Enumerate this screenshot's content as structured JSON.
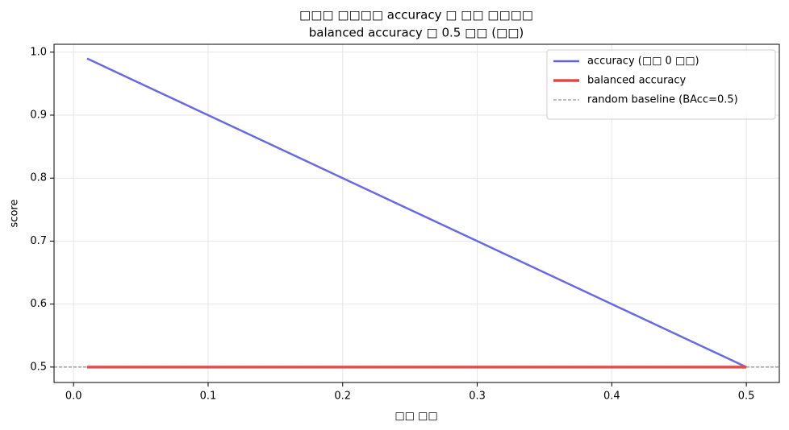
{
  "chart_data": {
    "type": "line",
    "title": [
      "□□□ □□□□ accuracy □ □□ □□□□",
      "balanced accuracy □ 0.5 □□ (□□)"
    ],
    "xlabel": "□□ □□",
    "ylabel": "score",
    "x": [
      0.01,
      0.1,
      0.2,
      0.3,
      0.4,
      0.5
    ],
    "series": [
      {
        "name": "accuracy (□□ 0 □□)",
        "color": "#6161e4",
        "width": 2.5,
        "values": [
          0.99,
          0.9,
          0.8,
          0.7,
          0.6,
          0.5
        ]
      },
      {
        "name": "balanced accuracy",
        "color": "#e04848",
        "width": 3.5,
        "values": [
          0.5,
          0.5,
          0.5,
          0.5,
          0.5,
          0.5
        ]
      }
    ],
    "hlines": [
      {
        "name": "random baseline (BAcc=0.5)",
        "color": "#777777",
        "value": 0.5
      }
    ],
    "xlim": [
      -0.0145,
      0.5245
    ],
    "ylim": [
      0.4755,
      1.0125
    ],
    "xticks": [
      {
        "value": 0,
        "label": "0.0"
      },
      0.1,
      0.2,
      0.3,
      0.4,
      0.5
    ],
    "yticks": [
      0.5,
      0.6,
      0.7,
      0.8,
      0.9,
      {
        "value": 1,
        "label": "1.0"
      }
    ],
    "grid": true,
    "legend": "upper right"
  }
}
